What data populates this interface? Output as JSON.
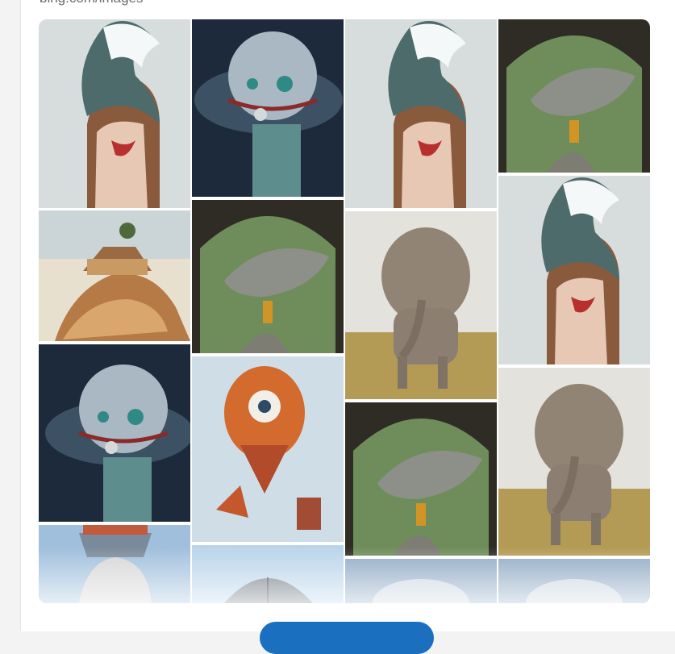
{
  "source": {
    "label": "bing.com/images"
  },
  "footer": {
    "more_label": ""
  },
  "tiles": [
    {
      "name": "wave-hair-woman"
    },
    {
      "name": "moon-creature"
    },
    {
      "name": "wave-hair-woman"
    },
    {
      "name": "shark-tunnel"
    },
    {
      "name": "island-wave-house"
    },
    {
      "name": "shark-tunnel"
    },
    {
      "name": "elephant"
    },
    {
      "name": "wave-hair-woman"
    },
    {
      "name": "moon-creature"
    },
    {
      "name": "eye-balloon"
    },
    {
      "name": "shark-tunnel"
    },
    {
      "name": "elephant"
    },
    {
      "name": "boat-head"
    },
    {
      "name": "umbrella-sky"
    },
    {
      "name": "partial-sky"
    },
    {
      "name": "partial-sky"
    }
  ]
}
